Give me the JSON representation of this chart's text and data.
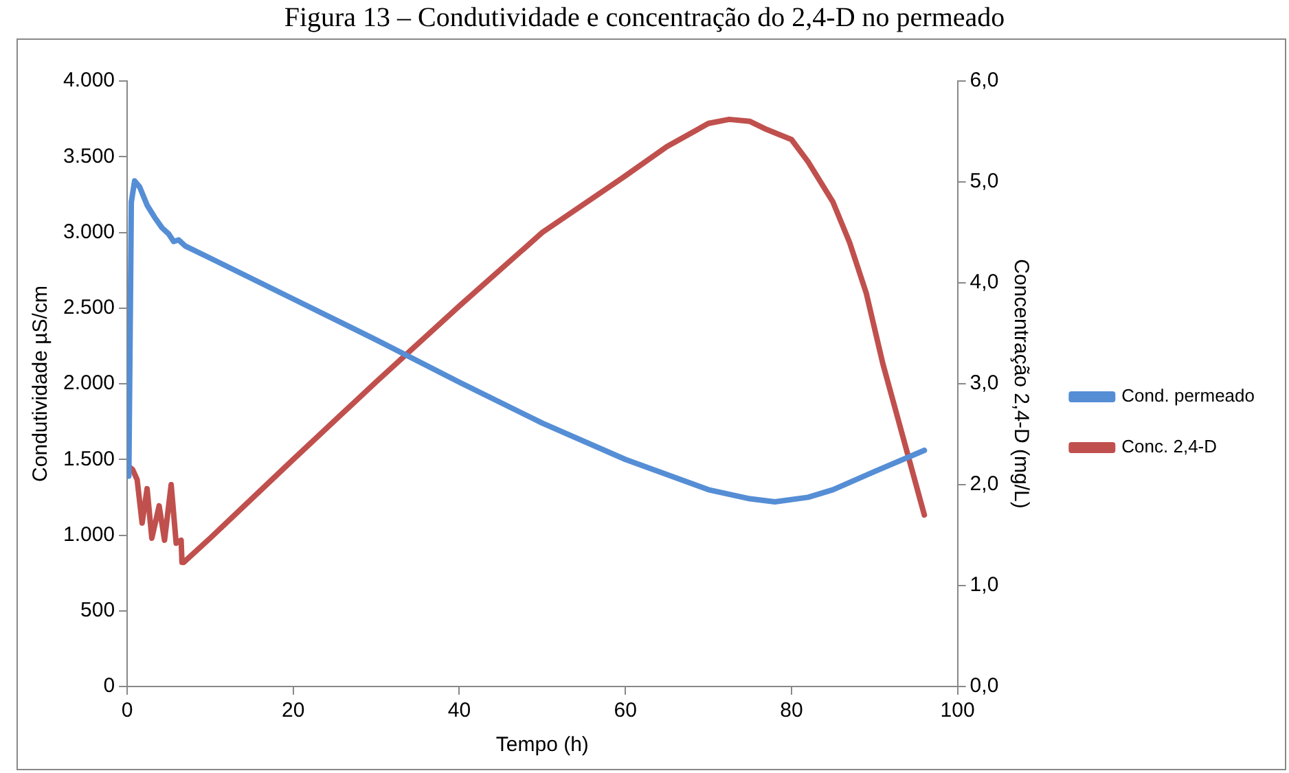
{
  "chart_data": {
    "type": "line",
    "title": "Figura 13 – Condutividade e concentração do 2,4-D no permeado",
    "xlabel": "Tempo (h)",
    "ylabel": "Condutividade µS/cm",
    "y2label": "Concentração 2,4-D (mg/L)",
    "xlim": [
      0,
      100
    ],
    "xticks": [
      0,
      20,
      40,
      60,
      80,
      100
    ],
    "ylim": [
      0,
      4000
    ],
    "yticks": [
      {
        "value": 0,
        "label": "0"
      },
      {
        "value": 500,
        "label": "500"
      },
      {
        "value": 1000,
        "label": "1.000"
      },
      {
        "value": 1500,
        "label": "1.500"
      },
      {
        "value": 2000,
        "label": "2.000"
      },
      {
        "value": 2500,
        "label": "2.500"
      },
      {
        "value": 3000,
        "label": "3.000"
      },
      {
        "value": 3500,
        "label": "3.500"
      },
      {
        "value": 4000,
        "label": "4.000"
      }
    ],
    "y2lim": [
      0,
      6
    ],
    "y2ticks": [
      {
        "value": 0,
        "label": "0,0"
      },
      {
        "value": 1,
        "label": "1,0"
      },
      {
        "value": 2,
        "label": "2,0"
      },
      {
        "value": 3,
        "label": "3,0"
      },
      {
        "value": 4,
        "label": "4,0"
      },
      {
        "value": 5,
        "label": "5,0"
      },
      {
        "value": 6,
        "label": "6,0"
      }
    ],
    "grid": false,
    "legend": "right",
    "marker": "none",
    "line_style": "solid",
    "series": [
      {
        "name": "Cond. permeado",
        "color": "#558ed5",
        "x": [
          0.2,
          0.5,
          0.9,
          1.5,
          2.4,
          3.3,
          4.2,
          5.0,
          5.6,
          6.2,
          7,
          10,
          20,
          30,
          40,
          50,
          60,
          70,
          75,
          78,
          82,
          85,
          90,
          96
        ],
        "values": [
          1390,
          3200,
          3340,
          3300,
          3180,
          3100,
          3030,
          2990,
          2940,
          2950,
          2910,
          2830,
          2560,
          2290,
          2010,
          1740,
          1500,
          1300,
          1240,
          1220,
          1250,
          1300,
          1420,
          1560
        ]
      },
      {
        "name": "Conc. 2,4-D",
        "color": "#c0504d",
        "axis": "y2",
        "x": [
          0.2,
          0.65,
          1.2,
          1.8,
          2.4,
          2.97,
          3.85,
          4.5,
          5.3,
          5.9,
          6.5,
          6.6,
          6.8,
          10,
          20,
          30,
          40,
          50,
          60,
          65,
          70,
          72.5,
          75,
          77,
          80,
          82,
          85,
          87,
          89,
          91,
          93,
          94,
          96
        ],
        "values": [
          2.18,
          2.15,
          2.05,
          1.62,
          1.96,
          1.47,
          1.79,
          1.45,
          2.0,
          1.42,
          1.45,
          1.23,
          1.23,
          1.47,
          2.25,
          3.02,
          3.77,
          4.5,
          5.06,
          5.35,
          5.58,
          5.62,
          5.6,
          5.52,
          5.42,
          5.2,
          4.8,
          4.4,
          3.9,
          3.2,
          2.6,
          2.3,
          1.7
        ]
      }
    ]
  }
}
